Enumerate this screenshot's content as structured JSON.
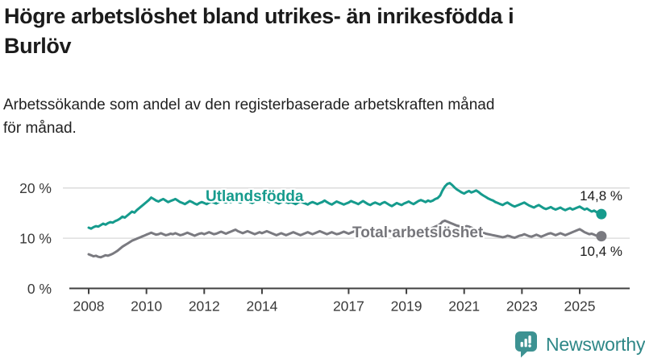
{
  "header": {
    "title": "Högre arbetslöshet bland utrikes- än inrikesfödda i\nBurlöv",
    "subtitle": "Arbetssökande som andel av den registerbaserade arbetskraften månad\nför månad."
  },
  "chart_data": {
    "type": "line",
    "title": "Högre arbetslöshet bland utrikes- än inrikesfödda i Burlöv",
    "xlabel": "",
    "ylabel": "",
    "unit": "%",
    "grid": "horizontal-only",
    "legend_position": "inline-on-lines",
    "x_start_year": 2008,
    "x_step_months": 1,
    "x_range": [
      2008.0,
      2025.75
    ],
    "ylim": [
      0,
      22.5
    ],
    "x_ticks": [
      {
        "label": "2008",
        "year": 2008
      },
      {
        "label": "2010",
        "year": 2010
      },
      {
        "label": "2012",
        "year": 2012
      },
      {
        "label": "2014",
        "year": 2014
      },
      {
        "label": "2017",
        "year": 2017
      },
      {
        "label": "2019",
        "year": 2019
      },
      {
        "label": "2021",
        "year": 2021
      },
      {
        "label": "2023",
        "year": 2023
      },
      {
        "label": "2025",
        "year": 2025
      }
    ],
    "y_ticks": [
      {
        "label": "0 %",
        "value": 0
      },
      {
        "label": "10 %",
        "value": 10
      },
      {
        "label": "20 %",
        "value": 20
      }
    ],
    "series": [
      {
        "name": "Utlandsfödda",
        "color": "#169b8d",
        "end_label": "14,8 %",
        "end_value": 14.8,
        "values": [
          12.1,
          11.9,
          12.2,
          12.4,
          12.3,
          12.6,
          12.9,
          12.7,
          13.0,
          13.2,
          13.1,
          13.4,
          13.6,
          13.9,
          14.3,
          14.1,
          14.5,
          14.9,
          15.3,
          15.1,
          15.6,
          16.0,
          16.4,
          16.8,
          17.2,
          17.6,
          18.1,
          17.8,
          17.5,
          17.3,
          17.6,
          17.8,
          17.5,
          17.2,
          17.4,
          17.6,
          17.8,
          17.5,
          17.2,
          17.0,
          16.8,
          17.1,
          17.4,
          17.2,
          16.9,
          16.7,
          17.0,
          17.2,
          17.0,
          16.8,
          17.1,
          17.3,
          17.1,
          16.9,
          17.2,
          17.5,
          17.3,
          17.1,
          17.4,
          17.2,
          17.4,
          17.6,
          17.3,
          17.1,
          17.4,
          17.7,
          17.5,
          17.2,
          17.0,
          17.3,
          17.5,
          17.3,
          17.5,
          17.7,
          17.4,
          17.2,
          17.5,
          17.3,
          17.1,
          16.9,
          17.2,
          17.4,
          17.2,
          17.0,
          17.2,
          17.0,
          16.8,
          17.1,
          17.3,
          17.1,
          16.9,
          16.7,
          17.0,
          17.2,
          17.0,
          16.8,
          17.0,
          17.2,
          17.5,
          17.2,
          16.9,
          16.7,
          17.0,
          17.3,
          17.1,
          16.9,
          16.7,
          16.9,
          17.1,
          17.4,
          17.2,
          17.0,
          16.8,
          17.1,
          17.4,
          17.1,
          16.8,
          16.6,
          16.9,
          17.1,
          16.9,
          16.7,
          17.0,
          17.2,
          16.9,
          16.6,
          16.4,
          16.7,
          17.0,
          16.8,
          16.6,
          16.9,
          17.1,
          17.3,
          17.0,
          16.8,
          17.1,
          17.4,
          17.6,
          17.4,
          17.2,
          17.5,
          17.3,
          17.5,
          17.8,
          18.0,
          18.5,
          19.5,
          20.3,
          20.8,
          21.0,
          20.6,
          20.1,
          19.7,
          19.4,
          19.1,
          18.9,
          19.2,
          19.4,
          19.1,
          19.3,
          19.5,
          19.2,
          18.8,
          18.5,
          18.2,
          17.9,
          17.7,
          17.5,
          17.2,
          17.0,
          16.8,
          16.6,
          16.9,
          17.1,
          16.8,
          16.5,
          16.3,
          16.5,
          16.7,
          16.9,
          17.1,
          16.8,
          16.5,
          16.3,
          16.1,
          16.4,
          16.6,
          16.3,
          16.0,
          15.8,
          16.0,
          16.2,
          15.9,
          15.7,
          15.9,
          16.1,
          15.8,
          15.6,
          15.8,
          16.0,
          15.7,
          15.9,
          16.1,
          16.3,
          16.0,
          15.7,
          15.9,
          15.6,
          15.3,
          15.5,
          15.2,
          15.0,
          14.8
        ]
      },
      {
        "name": "Total arbetslöshet",
        "color": "#7a7a80",
        "end_label": "10,4 %",
        "end_value": 10.4,
        "values": [
          6.8,
          6.6,
          6.4,
          6.5,
          6.3,
          6.2,
          6.4,
          6.6,
          6.5,
          6.7,
          6.9,
          7.2,
          7.5,
          7.9,
          8.3,
          8.6,
          8.9,
          9.2,
          9.5,
          9.7,
          9.9,
          10.1,
          10.3,
          10.5,
          10.7,
          10.9,
          11.1,
          10.9,
          10.7,
          10.8,
          11.0,
          10.8,
          10.6,
          10.7,
          10.9,
          10.8,
          11.0,
          10.8,
          10.6,
          10.7,
          10.9,
          11.1,
          10.9,
          10.7,
          10.5,
          10.7,
          10.9,
          11.0,
          10.8,
          11.0,
          11.2,
          11.0,
          10.8,
          10.9,
          11.1,
          11.3,
          11.1,
          10.9,
          11.1,
          11.3,
          11.5,
          11.7,
          11.4,
          11.2,
          11.0,
          11.2,
          11.4,
          11.2,
          11.0,
          10.8,
          11.0,
          11.2,
          11.0,
          11.2,
          11.4,
          11.2,
          11.0,
          10.8,
          10.6,
          10.8,
          11.0,
          10.8,
          10.6,
          10.8,
          11.0,
          11.2,
          11.0,
          10.8,
          10.6,
          10.8,
          11.0,
          11.2,
          11.0,
          10.8,
          11.0,
          11.2,
          11.4,
          11.2,
          11.0,
          10.8,
          11.0,
          11.2,
          11.0,
          10.8,
          10.9,
          11.1,
          11.3,
          11.1,
          10.9,
          11.1,
          11.3,
          11.5,
          11.3,
          11.1,
          11.5,
          11.7,
          11.4,
          11.2,
          11.4,
          11.2,
          11.4,
          11.6,
          11.3,
          11.1,
          11.3,
          11.5,
          11.2,
          11.0,
          11.2,
          11.4,
          11.1,
          11.3,
          11.5,
          11.3,
          11.1,
          11.3,
          11.5,
          11.7,
          11.5,
          11.3,
          11.5,
          11.7,
          11.9,
          12.1,
          12.3,
          12.5,
          12.8,
          13.3,
          13.5,
          13.3,
          13.1,
          12.9,
          12.7,
          12.5,
          12.4,
          12.3,
          12.2,
          12.4,
          12.3,
          12.1,
          11.9,
          11.7,
          11.5,
          11.3,
          11.1,
          10.9,
          10.8,
          10.7,
          10.6,
          10.5,
          10.4,
          10.3,
          10.2,
          10.3,
          10.5,
          10.4,
          10.2,
          10.1,
          10.3,
          10.5,
          10.6,
          10.8,
          10.6,
          10.4,
          10.3,
          10.5,
          10.7,
          10.5,
          10.3,
          10.5,
          10.7,
          10.9,
          11.0,
          10.8,
          10.6,
          10.8,
          11.0,
          10.8,
          10.6,
          10.8,
          11.0,
          11.2,
          11.4,
          11.6,
          11.8,
          11.5,
          11.2,
          11.0,
          10.8,
          10.9,
          10.7,
          10.5,
          10.6,
          10.4
        ]
      }
    ]
  },
  "colors": {
    "accent_teal": "#169b8d",
    "series_gray": "#7a7a80",
    "axis": "#404040",
    "gridline": "#d9d9d9",
    "tick_text": "#3a3a3a"
  },
  "footer": {
    "brand": "Newsworthy",
    "logo_icon": "bar-chart-speech-bubble-icon",
    "brand_text_color": "#2e8787",
    "icon_color": "#3d9292"
  }
}
